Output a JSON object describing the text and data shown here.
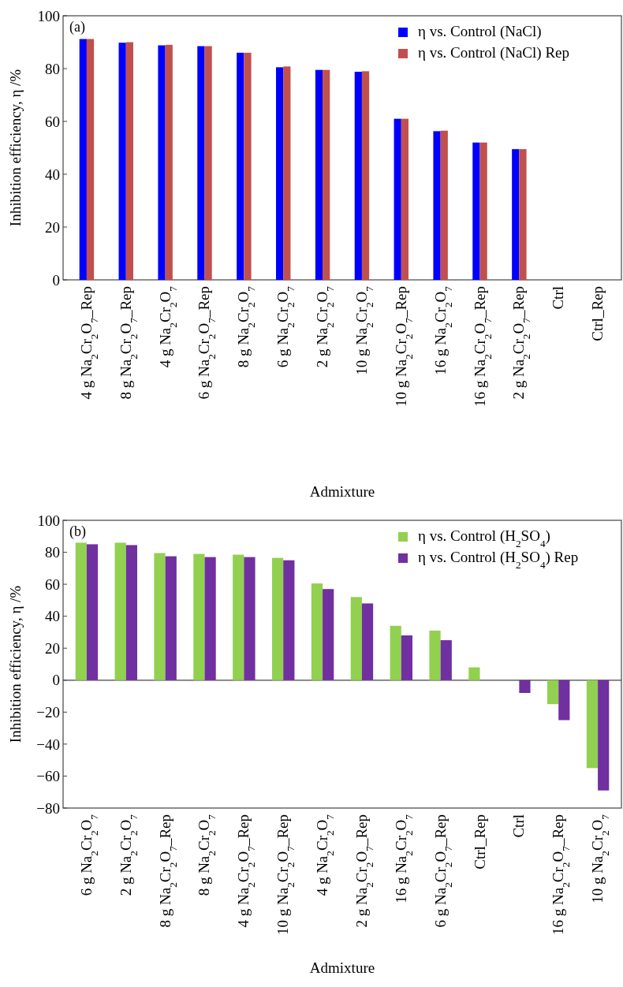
{
  "chart_data": [
    {
      "type": "bar",
      "title": "(a)",
      "xlabel": "Admixture",
      "ylabel": "Inhibition efficiency,  η /%",
      "categories": [
        "4 g Na$_{2}$Cr$_{2}$O$_{7}$_Rep",
        "8 g Na$_{2}$Cr$_{2}$O$_{7}$_Rep",
        "4 g Na$_{2}$Cr$_{2}$O$_{7}$",
        "6 g Na$_{2}$Cr$_{2}$O$_{7}$_Rep",
        "8 g Na$_{2}$Cr$_{2}$O$_{7}$",
        "6 g Na$_{2}$Cr$_{2}$O$_{7}$",
        "2 g Na$_{2}$Cr$_{2}$O$_{7}$",
        "10 g Na$_{2}$Cr$_{2}$O$_{7}$",
        "10 g Na$_{2}$Cr$_{2}$O$_{7}$_Rep",
        "16 g Na$_{2}$Cr$_{2}$O$_{7}$",
        "16 g Na$_{2}$Cr$_{2}$O$_{7}$_Rep",
        "2 g Na$_{2}$Cr$_{2}$O$_{7}$_Rep",
        "Ctrl",
        "Ctrl_Rep"
      ],
      "series": [
        {
          "name": "η vs. Control (NaCl)",
          "color": "#0000ff",
          "values": [
            91.2,
            89.8,
            88.8,
            88.5,
            86,
            80.5,
            79.5,
            78.8,
            61,
            56.3,
            52,
            49.5,
            0,
            0
          ]
        },
        {
          "name": "η vs. Control (NaCl) Rep",
          "color": "#c0504d",
          "values": [
            91.2,
            90,
            89,
            88.5,
            86,
            80.8,
            79.5,
            79,
            61,
            56.5,
            52,
            49.5,
            0,
            0
          ]
        }
      ],
      "ylim": [
        0,
        100
      ],
      "yticks": [
        0,
        20,
        40,
        60,
        80,
        100
      ],
      "grid": false,
      "legend": "top right"
    },
    {
      "type": "bar",
      "title": "(b)",
      "xlabel": "Admixture",
      "ylabel": "Inhibition efficiency,  η /%",
      "categories": [
        "6 g Na$_{2}$Cr$_{2}$O$_{7}$",
        "2 g Na$_{2}$Cr$_{2}$O$_{7}$",
        "8 g Na$_{2}$Cr$_{2}$O$_{7}$_Rep",
        "8 g Na$_{2}$Cr$_{2}$O$_{7}$",
        "4 g Na$_{2}$Cr$_{2}$O$_{7}$_Rep",
        "10 g Na$_{2}$Cr$_{2}$O$_{7}$_Rep",
        "4 g Na$_{2}$Cr$_{2}$O$_{7}$",
        "2 g Na$_{2}$Cr$_{2}$O$_{7}$_Rep",
        "16 g Na$_{2}$Cr$_{2}$O$_{7}$",
        "6 g Na$_{2}$Cr$_{2}$O$_{7}$_Rep",
        "Ctrl_Rep",
        "Ctrl",
        "16 g Na$_{2}$Cr$_{2}$O$_{7}$_Rep",
        "10 g Na$_{2}$Cr$_{2}$O$_{7}$"
      ],
      "series": [
        {
          "name": "η vs. Control (H$_{2}$SO$_{4}$)",
          "color": "#92d050",
          "values": [
            86,
            86,
            79.5,
            79,
            78.5,
            76.5,
            60.5,
            52,
            34,
            31,
            8,
            0,
            -15,
            -55
          ]
        },
        {
          "name": "η vs. Control (H$_{2}$SO$_{4}$) Rep",
          "color": "#7030a0",
          "values": [
            85,
            84.5,
            77.5,
            77,
            77,
            75,
            57,
            48,
            28,
            25,
            0,
            -8,
            -25,
            -69
          ]
        }
      ],
      "ylim": [
        -80,
        100
      ],
      "yticks": [
        -80,
        -60,
        -40,
        -20,
        0,
        20,
        40,
        60,
        80,
        100
      ],
      "ref_lines": [
        {
          "axis": "y",
          "value": 0,
          "color": "#444444",
          "line_style": "solid"
        }
      ],
      "grid": false,
      "legend": "top right"
    }
  ]
}
